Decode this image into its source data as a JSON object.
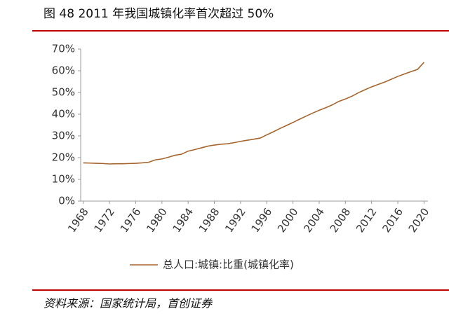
{
  "title": "图 48 2011 年我国城镇化率首次超过 50%",
  "source": "资料来源：国家统计局，首创证券",
  "chart_data": {
    "type": "line",
    "x": [
      1968,
      1969,
      1970,
      1971,
      1972,
      1973,
      1974,
      1975,
      1976,
      1977,
      1978,
      1979,
      1980,
      1981,
      1982,
      1983,
      1984,
      1985,
      1986,
      1987,
      1988,
      1989,
      1990,
      1991,
      1992,
      1993,
      1994,
      1995,
      1996,
      1997,
      1998,
      1999,
      2000,
      2001,
      2002,
      2003,
      2004,
      2005,
      2006,
      2007,
      2008,
      2009,
      2010,
      2011,
      2012,
      2013,
      2014,
      2015,
      2016,
      2017,
      2018,
      2019,
      2020
    ],
    "series": [
      {
        "name": "总人口:城镇:比重(城镇化率)",
        "color": "#a5642c",
        "values": [
          17.6,
          17.5,
          17.4,
          17.3,
          17.1,
          17.2,
          17.2,
          17.3,
          17.4,
          17.6,
          17.9,
          19.0,
          19.4,
          20.2,
          21.1,
          21.6,
          23.0,
          23.7,
          24.5,
          25.3,
          25.8,
          26.2,
          26.4,
          26.9,
          27.5,
          28.0,
          28.5,
          29.0,
          30.5,
          31.9,
          33.4,
          34.8,
          36.2,
          37.7,
          39.1,
          40.5,
          41.8,
          43.0,
          44.3,
          45.9,
          47.0,
          48.3,
          49.9,
          51.3,
          52.6,
          53.7,
          54.8,
          56.1,
          57.4,
          58.5,
          59.6,
          60.6,
          63.9
        ]
      }
    ],
    "xlim": [
      1967.6,
      2020.6
    ],
    "xticks": [
      1968,
      1972,
      1976,
      1980,
      1984,
      1988,
      1992,
      1996,
      2000,
      2004,
      2008,
      2012,
      2016,
      2020
    ],
    "ylim": [
      0,
      70
    ],
    "yticks": [
      {
        "value": 0,
        "label": "0%"
      },
      {
        "value": 10,
        "label": "10%"
      },
      {
        "value": 20,
        "label": "20%"
      },
      {
        "value": 30,
        "label": "30%"
      },
      {
        "value": 40,
        "label": "40%"
      },
      {
        "value": 50,
        "label": "50%"
      },
      {
        "value": 60,
        "label": "60%"
      },
      {
        "value": 70,
        "label": "70%"
      }
    ],
    "legend": "bottom"
  }
}
